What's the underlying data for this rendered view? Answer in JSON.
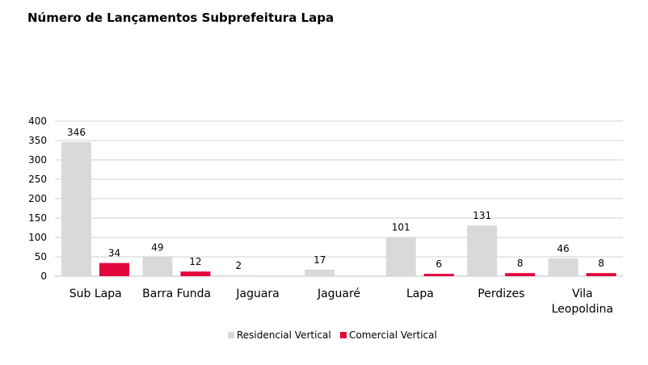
{
  "chart_data": {
    "type": "bar",
    "title": "Número de Lançamentos Subprefeitura Lapa",
    "categories": [
      [
        "Sub Lapa"
      ],
      [
        "Barra Funda"
      ],
      [
        "Jaguara"
      ],
      [
        "Jaguaré"
      ],
      [
        "Lapa"
      ],
      [
        "Perdizes"
      ],
      [
        "Vila",
        "Leopoldina"
      ]
    ],
    "series": [
      {
        "name": "Residencial Vertical",
        "color": "#d9d9d9",
        "values": [
          346,
          49,
          2,
          17,
          101,
          131,
          46
        ]
      },
      {
        "name": "Comercial Vertical",
        "color": "#e3073c",
        "values": [
          34,
          12,
          null,
          null,
          6,
          8,
          8
        ]
      }
    ],
    "ylim": [
      0,
      400
    ],
    "yticks": [
      0,
      50,
      100,
      150,
      200,
      250,
      300,
      350,
      400
    ],
    "grid": true,
    "legend_position": "bottom",
    "xlabel": "",
    "ylabel": ""
  }
}
